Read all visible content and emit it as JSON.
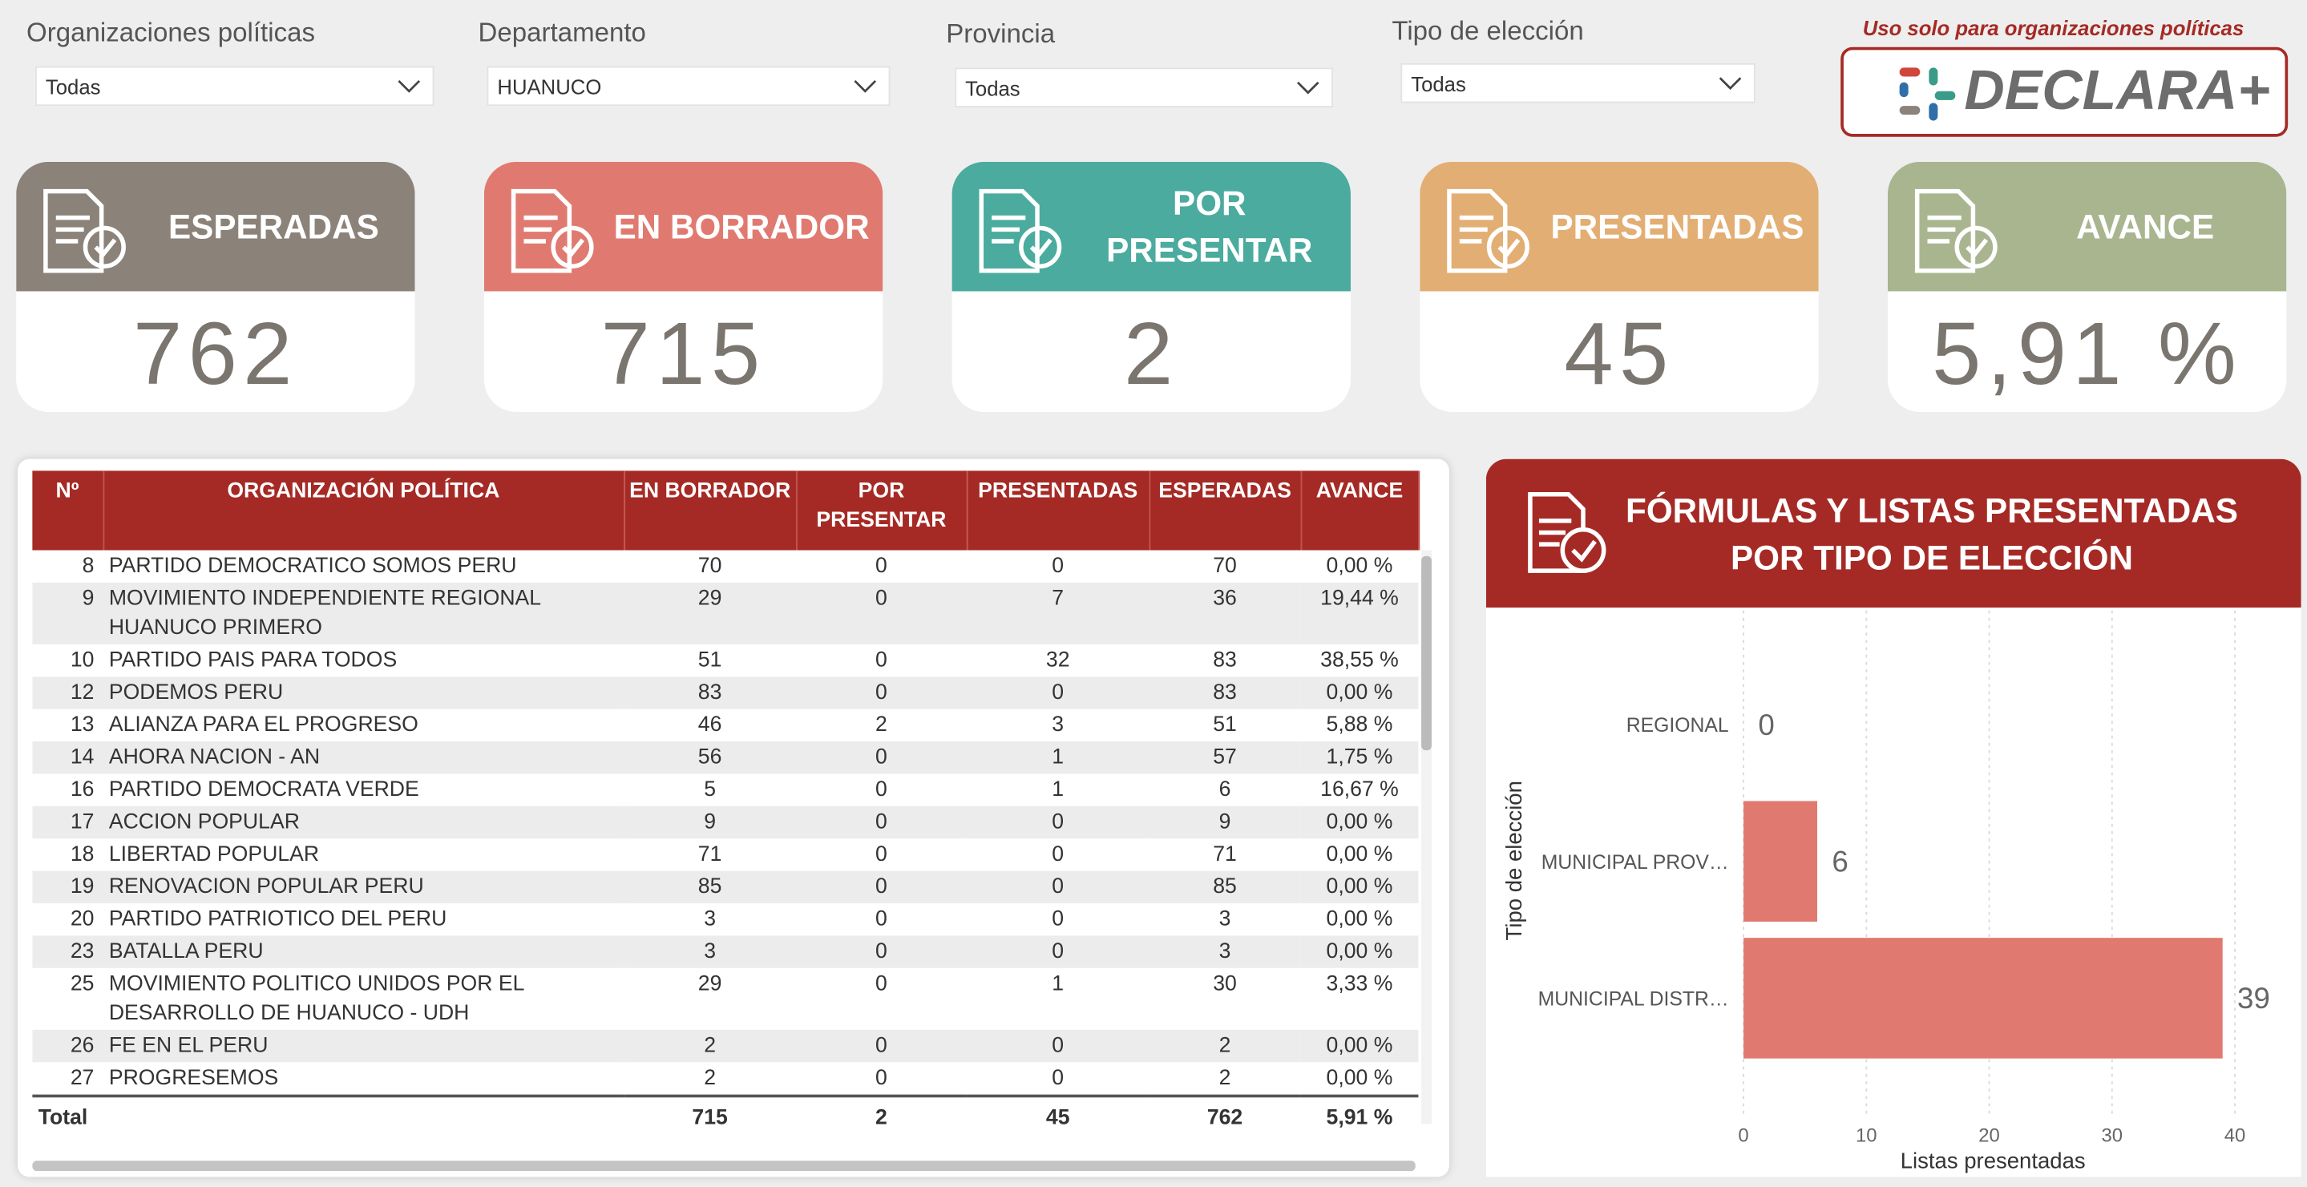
{
  "filters": [
    {
      "label": "Organizaciones políticas",
      "value": "Todas"
    },
    {
      "label": "Departamento",
      "value": "HUANUCO"
    },
    {
      "label": "Provincia",
      "value": "Todas"
    },
    {
      "label": "Tipo de elección",
      "value": "Todas"
    }
  ],
  "notice": "Uso solo para organizaciones políticas",
  "logo": "DECLARA+",
  "cards": [
    {
      "title": "ESPERADAS",
      "value": "762",
      "color": "#8b8279"
    },
    {
      "title": "EN BORRADOR",
      "value": "715",
      "color": "#e07a70"
    },
    {
      "title": "POR PRESENTAR",
      "value": "2",
      "color": "#4aab9e"
    },
    {
      "title": "PRESENTADAS",
      "value": "45",
      "color": "#e2ae73"
    },
    {
      "title": "AVANCE",
      "value": "5,91 %",
      "color": "#a9b58f"
    }
  ],
  "table": {
    "columns": [
      "Nº",
      "ORGANIZACIÓN POLÍTICA",
      "EN BORRADOR",
      "POR PRESENTAR",
      "PRESENTADAS",
      "ESPERADAS",
      "AVANCE"
    ],
    "rows": [
      [
        "8",
        "PARTIDO DEMOCRATICO SOMOS PERU",
        "70",
        "0",
        "0",
        "70",
        "0,00 %"
      ],
      [
        "9",
        "MOVIMIENTO INDEPENDIENTE REGIONAL HUANUCO PRIMERO",
        "29",
        "0",
        "7",
        "36",
        "19,44 %"
      ],
      [
        "10",
        "PARTIDO PAIS PARA TODOS",
        "51",
        "0",
        "32",
        "83",
        "38,55 %"
      ],
      [
        "12",
        "PODEMOS PERU",
        "83",
        "0",
        "0",
        "83",
        "0,00 %"
      ],
      [
        "13",
        "ALIANZA PARA EL PROGRESO",
        "46",
        "2",
        "3",
        "51",
        "5,88 %"
      ],
      [
        "14",
        "AHORA NACION - AN",
        "56",
        "0",
        "1",
        "57",
        "1,75 %"
      ],
      [
        "16",
        "PARTIDO DEMOCRATA VERDE",
        "5",
        "0",
        "1",
        "6",
        "16,67 %"
      ],
      [
        "17",
        "ACCION POPULAR",
        "9",
        "0",
        "0",
        "9",
        "0,00 %"
      ],
      [
        "18",
        "LIBERTAD POPULAR",
        "71",
        "0",
        "0",
        "71",
        "0,00 %"
      ],
      [
        "19",
        "RENOVACION POPULAR PERU",
        "85",
        "0",
        "0",
        "85",
        "0,00 %"
      ],
      [
        "20",
        "PARTIDO PATRIOTICO DEL PERU",
        "3",
        "0",
        "0",
        "3",
        "0,00 %"
      ],
      [
        "23",
        "BATALLA PERU",
        "3",
        "0",
        "0",
        "3",
        "0,00 %"
      ],
      [
        "25",
        "MOVIMIENTO POLITICO UNIDOS POR EL DESARROLLO DE HUANUCO - UDH",
        "29",
        "0",
        "1",
        "30",
        "3,33 %"
      ],
      [
        "26",
        "FE EN EL PERU",
        "2",
        "0",
        "0",
        "2",
        "0,00 %"
      ],
      [
        "27",
        "PROGRESEMOS",
        "2",
        "0",
        "0",
        "2",
        "0,00 %"
      ]
    ],
    "total": {
      "label": "Total",
      "values": [
        "715",
        "2",
        "45",
        "762",
        "5,91 %"
      ]
    }
  },
  "chart_data": {
    "type": "hbar",
    "title": "FÓRMULAS Y LISTAS PRESENTADAS POR TIPO DE ELECCIÓN",
    "categories": [
      "REGIONAL",
      "MUNICIPAL PROV…",
      "MUNICIPAL DISTR…"
    ],
    "values": [
      0,
      6,
      39
    ],
    "color": "#e07a70",
    "xlim": [
      0,
      43
    ],
    "xticks": [
      0,
      10,
      20,
      30,
      40
    ],
    "grid": true,
    "xlabel": "Listas presentadas",
    "ylabel": "Tipo de elección"
  }
}
